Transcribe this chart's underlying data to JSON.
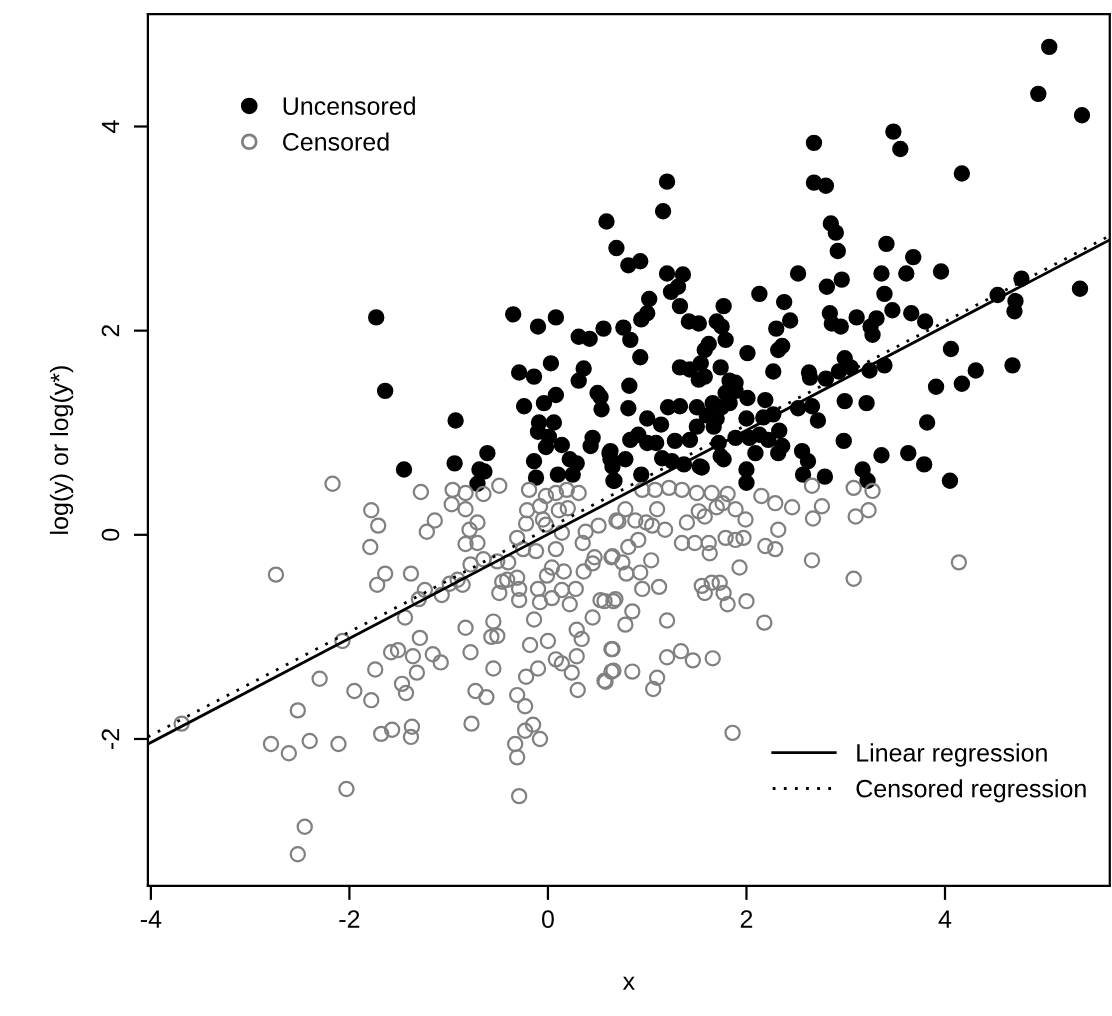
{
  "chart_data": {
    "type": "scatter",
    "xlabel": "x",
    "ylabel": "log(y) or log(y*)",
    "xlim": [
      -4.03,
      5.66
    ],
    "ylim": [
      -3.44,
      5.1
    ],
    "xticks": [
      -4,
      -2,
      0,
      2,
      4
    ],
    "yticks": [
      -2,
      0,
      2,
      4
    ],
    "grid": false,
    "legend": "top left",
    "series": [
      {
        "name": "Uncensored",
        "color": "#000000",
        "marker": "circle",
        "x": [
          -1.73,
          -1.64,
          -0.35,
          -0.1,
          0.08,
          0.59,
          0.69,
          0.56,
          0.31,
          0.42,
          0.03,
          -0.29,
          -0.14,
          0.36,
          0.31,
          0.5,
          0.08,
          -0.24,
          -0.04,
          0.54,
          -0.93,
          -0.09,
          0.06,
          -0.1,
          0.01,
          0.14,
          -0.02,
          0.45,
          0.43,
          -0.61,
          0.22,
          0.29,
          0.62,
          0.65,
          -0.94,
          -0.69,
          -0.64,
          -0.14,
          -1.45,
          -0.71,
          -0.12,
          0.1,
          0.25,
          0.66,
          5.05,
          4.94,
          5.38,
          3.48,
          3.55,
          2.68,
          2.68,
          2.8,
          4.17,
          1.2,
          1.16,
          2.85,
          2.9,
          2.92,
          3.41,
          3.68,
          0.81,
          0.93,
          1.2,
          1.36,
          1.31,
          1.24,
          2.52,
          2.96,
          3.36,
          3.61,
          3.96,
          2.81,
          2.13,
          3.39,
          4.77,
          4.53,
          4.71,
          4.7,
          5.36,
          1.02,
          1.0,
          0.94,
          1.33,
          1.77,
          2.38,
          2.44,
          2.3,
          2.84,
          3.11,
          3.47,
          3.66,
          3.8,
          3.31,
          3.25,
          3.27,
          2.86,
          2.95,
          1.42,
          1.52,
          1.7,
          1.75,
          0.76,
          0.83,
          0.93,
          1.62,
          1.58,
          1.79,
          2.01,
          2.36,
          2.32,
          4.06,
          1.33,
          1.43,
          1.54,
          1.74,
          2.27,
          2.63,
          2.99,
          3.05,
          3.24,
          3.39,
          4.68,
          4.31,
          4.17,
          3.91,
          1.52,
          1.58,
          1.83,
          1.89,
          1.89,
          1.79,
          2.64,
          2.8,
          2.93,
          0.82,
          0.53,
          0.81,
          1.21,
          1.33,
          1.5,
          1.66,
          1.75,
          1.83,
          2.01,
          2.19,
          2.99,
          3.21,
          3.82,
          2.52,
          2.66,
          2.72,
          1.0,
          1.14,
          1.6,
          1.7,
          1.67,
          2.0,
          2.17,
          2.27,
          1.5,
          2.33,
          2.13,
          2.22,
          0.83,
          0.91,
          1.0,
          1.09,
          1.28,
          1.43,
          1.72,
          1.89,
          2.03,
          2.36,
          2.56,
          0.63,
          0.78,
          0.63,
          1.15,
          1.25,
          1.37,
          1.53,
          1.74,
          1.77,
          2.09,
          2.32,
          2.62,
          2.98,
          3.36,
          3.63,
          3.79,
          3.17,
          2.57,
          2.79,
          2.0,
          2.0,
          0.94,
          0.67,
          3.22,
          4.05,
          1.55
        ],
        "values": [
          2.13,
          1.41,
          2.16,
          2.04,
          2.13,
          3.07,
          2.81,
          2.02,
          1.94,
          1.92,
          1.68,
          1.59,
          1.55,
          1.63,
          1.51,
          1.39,
          1.37,
          1.26,
          1.29,
          1.23,
          1.12,
          1.1,
          1.1,
          1.01,
          0.96,
          0.88,
          0.86,
          0.95,
          0.87,
          0.8,
          0.74,
          0.7,
          0.8,
          0.67,
          0.7,
          0.64,
          0.62,
          0.72,
          0.64,
          0.5,
          0.56,
          0.59,
          0.59,
          0.53,
          4.78,
          4.32,
          4.11,
          3.95,
          3.78,
          3.84,
          3.45,
          3.42,
          3.54,
          3.46,
          3.17,
          3.05,
          2.96,
          2.78,
          2.85,
          2.72,
          2.64,
          2.68,
          2.56,
          2.55,
          2.43,
          2.38,
          2.56,
          2.5,
          2.56,
          2.56,
          2.58,
          2.43,
          2.36,
          2.36,
          2.51,
          2.35,
          2.29,
          2.19,
          2.41,
          2.31,
          2.17,
          2.11,
          2.24,
          2.24,
          2.28,
          2.1,
          2.02,
          2.17,
          2.13,
          2.2,
          2.17,
          2.09,
          2.12,
          2.04,
          1.96,
          2.07,
          2.04,
          2.09,
          2.07,
          2.09,
          2.04,
          2.03,
          1.91,
          1.74,
          1.87,
          1.81,
          1.91,
          1.78,
          1.85,
          1.81,
          1.82,
          1.64,
          1.62,
          1.68,
          1.64,
          1.6,
          1.59,
          1.73,
          1.64,
          1.61,
          1.66,
          1.66,
          1.61,
          1.48,
          1.45,
          1.52,
          1.55,
          1.51,
          1.49,
          1.41,
          1.39,
          1.54,
          1.53,
          1.6,
          1.46,
          1.35,
          1.24,
          1.25,
          1.26,
          1.25,
          1.29,
          1.25,
          1.29,
          1.34,
          1.32,
          1.31,
          1.29,
          1.1,
          1.24,
          1.26,
          1.12,
          1.14,
          1.08,
          1.17,
          1.14,
          1.06,
          1.14,
          1.15,
          1.18,
          1.06,
          1.02,
          0.98,
          0.93,
          0.93,
          0.98,
          0.9,
          0.9,
          0.92,
          0.93,
          0.9,
          0.95,
          0.95,
          0.87,
          0.82,
          0.82,
          0.74,
          0.74,
          0.75,
          0.72,
          0.69,
          0.67,
          0.77,
          0.74,
          0.8,
          0.8,
          0.72,
          0.92,
          0.78,
          0.8,
          0.69,
          0.64,
          0.59,
          0.57,
          0.64,
          0.51,
          0.59,
          0.53,
          0.53,
          0.53,
          0.66
        ]
      },
      {
        "name": "Censored",
        "color": "#808080",
        "marker": "circle",
        "x": [
          -2.17,
          -1.78,
          -1.71,
          -1.79,
          -2.74,
          -1.72,
          -1.64,
          -1.38,
          -1.28,
          -1.22,
          -1.14,
          -0.96,
          -0.97,
          -0.83,
          -0.83,
          -0.79,
          -0.83,
          -0.71,
          -0.71,
          -0.65,
          -0.49,
          -0.78,
          -0.65,
          -0.51,
          -0.91,
          -0.86,
          -1.07,
          -1.24,
          -1.3,
          -1.44,
          -2.07,
          -2.3,
          -1.95,
          -1.78,
          -1.74,
          -1.58,
          -1.51,
          -1.36,
          -1.29,
          -1.16,
          -1.08,
          -1.32,
          -1.47,
          -1.43,
          -2.52,
          -2.79,
          -2.61,
          -2.4,
          -2.11,
          -3.69,
          -2.03,
          -2.45,
          -2.52,
          -1.68,
          -1.57,
          -1.37,
          -1.38,
          -0.77,
          -0.83,
          -0.78,
          -0.55,
          -0.57,
          -0.51,
          -0.55,
          -0.73,
          -0.62,
          -0.31,
          -0.23,
          -0.22,
          -0.1,
          -0.33,
          -0.31,
          -0.29,
          -0.23,
          -0.15,
          -0.08,
          -0.18,
          0.0,
          -0.14,
          0.08,
          0.14,
          0.24,
          0.3,
          0.29,
          0.29,
          0.34,
          0.45,
          0.58,
          0.64,
          0.64,
          -0.46,
          -0.41,
          -0.31,
          -0.29,
          -0.29,
          -0.1,
          -0.08,
          0.04,
          0.14,
          0.16,
          -0.01,
          0.22,
          0.28,
          0.36,
          0.45,
          0.53,
          0.66,
          0.04,
          -0.22,
          -0.31,
          -0.25,
          -0.12,
          -0.21,
          -0.19,
          -0.02,
          0.08,
          0.19,
          0.31,
          -0.08,
          0.11,
          0.2,
          -0.05,
          -0.02,
          0.14,
          0.08,
          0.35,
          0.38,
          0.51,
          0.69,
          0.64,
          0.47,
          -0.4,
          -0.49,
          -0.99,
          0.78,
          0.71,
          0.88,
          0.99,
          1.1,
          1.05,
          1.18,
          0.95,
          1.08,
          1.22,
          1.35,
          1.5,
          1.65,
          1.81,
          1.4,
          1.52,
          1.58,
          1.7,
          1.76,
          1.89,
          1.99,
          2.15,
          2.29,
          2.46,
          2.66,
          2.67,
          2.76,
          3.08,
          3.27,
          3.23,
          3.1,
          2.32,
          2.19,
          2.29,
          2.66,
          3.08,
          4.14,
          1.35,
          1.48,
          1.62,
          1.79,
          1.89,
          1.97,
          1.63,
          0.91,
          0.81,
          0.65,
          0.75,
          1.04,
          0.93,
          0.79,
          1.12,
          0.95,
          1.55,
          1.65,
          1.73,
          1.58,
          1.77,
          1.81,
          1.93,
          2.0,
          2.18,
          0.68,
          0.57,
          0.85,
          0.78,
          1.2,
          0.65,
          0.66,
          0.85,
          0.57,
          1.1,
          1.06,
          1.2,
          1.34,
          1.46,
          1.66,
          1.86
        ],
        "values": [
          0.5,
          0.24,
          0.09,
          -0.12,
          -0.39,
          -0.49,
          -0.38,
          -0.38,
          0.42,
          0.03,
          0.14,
          0.44,
          0.3,
          0.41,
          0.25,
          0.05,
          -0.09,
          0.12,
          -0.08,
          0.4,
          0.48,
          -0.29,
          -0.24,
          -0.26,
          -0.44,
          -0.49,
          -0.59,
          -0.54,
          -0.63,
          -0.81,
          -1.04,
          -1.41,
          -1.53,
          -1.62,
          -1.32,
          -1.15,
          -1.13,
          -1.19,
          -1.01,
          -1.17,
          -1.25,
          -1.35,
          -1.46,
          -1.55,
          -1.72,
          -2.05,
          -2.14,
          -2.02,
          -2.05,
          -1.85,
          -2.49,
          -2.86,
          -3.13,
          -1.95,
          -1.91,
          -1.88,
          -1.98,
          -1.85,
          -0.91,
          -1.15,
          -0.85,
          -1.0,
          -0.99,
          -1.31,
          -1.53,
          -1.59,
          -1.57,
          -1.68,
          -1.39,
          -1.31,
          -2.05,
          -2.18,
          -2.56,
          -1.92,
          -1.86,
          -2.0,
          -1.08,
          -1.04,
          -0.83,
          -1.22,
          -1.26,
          -1.35,
          -1.52,
          -1.19,
          -0.93,
          -1.02,
          -0.81,
          -1.44,
          -1.34,
          -1.12,
          -0.46,
          -0.44,
          -0.42,
          -0.53,
          -0.64,
          -0.53,
          -0.66,
          -0.62,
          -0.54,
          -0.36,
          -0.4,
          -0.68,
          -0.53,
          -0.36,
          -0.28,
          -0.64,
          -0.65,
          -0.32,
          0.11,
          -0.03,
          -0.14,
          -0.16,
          0.24,
          0.44,
          0.38,
          0.41,
          0.44,
          0.41,
          0.28,
          0.24,
          0.26,
          0.15,
          0.1,
          0.02,
          -0.14,
          -0.08,
          0.03,
          0.09,
          0.14,
          -0.22,
          -0.22,
          -0.27,
          -0.57,
          -0.48,
          0.25,
          0.13,
          0.14,
          0.12,
          0.25,
          0.09,
          0.05,
          0.44,
          0.44,
          0.46,
          0.44,
          0.41,
          0.41,
          0.4,
          0.12,
          0.23,
          0.18,
          0.27,
          0.31,
          0.25,
          0.15,
          0.38,
          0.31,
          0.27,
          0.48,
          0.16,
          0.28,
          0.46,
          0.43,
          0.24,
          0.18,
          0.05,
          -0.11,
          -0.14,
          -0.25,
          -0.43,
          -0.27,
          -0.08,
          -0.08,
          -0.08,
          -0.03,
          -0.05,
          -0.03,
          -0.18,
          -0.05,
          -0.12,
          -0.21,
          -0.27,
          -0.25,
          -0.37,
          -0.38,
          -0.51,
          -0.53,
          -0.5,
          -0.47,
          -0.47,
          -0.57,
          -0.57,
          -0.68,
          -0.32,
          -0.65,
          -0.86,
          -0.63,
          -0.65,
          -0.75,
          -0.88,
          -0.84,
          -1.12,
          -1.33,
          -1.34,
          -1.43,
          -1.4,
          -1.51,
          -1.2,
          -1.14,
          -1.23,
          -1.21,
          -1.94
        ]
      },
      {
        "name": "Linear regression",
        "color": "#000000",
        "type": "line",
        "line_style": "solid",
        "x": [
          -4.03,
          5.66
        ],
        "values": [
          -2.05,
          2.89
        ]
      },
      {
        "name": "Censored regression",
        "color": "#000000",
        "type": "line",
        "line_style": "dotted",
        "x": [
          -4.03,
          5.66
        ],
        "values": [
          -1.98,
          2.93
        ]
      }
    ]
  }
}
